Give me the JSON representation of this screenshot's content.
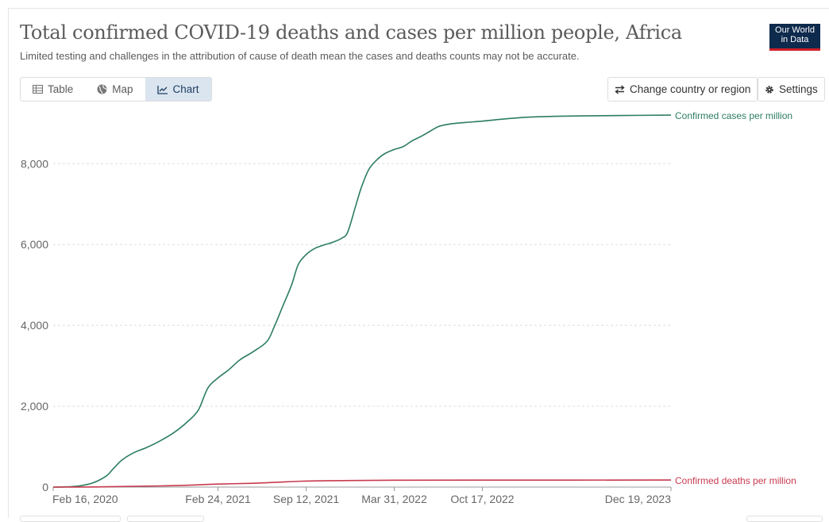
{
  "header": {
    "title": "Total confirmed COVID-19 deaths and cases per million people, Africa",
    "subtitle": "Limited testing and challenges in the attribution of cause of death mean the cases and deaths counts may not be accurate.",
    "logo_line1": "Our World",
    "logo_line2": "in Data"
  },
  "tabs": [
    {
      "label": "Table",
      "icon": "table-icon",
      "active": false
    },
    {
      "label": "Map",
      "icon": "globe-icon",
      "active": false
    },
    {
      "label": "Chart",
      "icon": "line-chart-icon",
      "active": true
    }
  ],
  "controls": {
    "change_country_label": "Change country or region",
    "settings_label": "Settings"
  },
  "colors": {
    "cases": "#2c7d5f",
    "deaths": "#c73a4f",
    "grid": "#dddddd",
    "axis": "#666666"
  },
  "chart_data": {
    "type": "line",
    "title": "Total confirmed COVID-19 deaths and cases per million people, Africa",
    "xlabel": "",
    "ylabel": "",
    "x_ticks": [
      "Feb 16, 2020",
      "Feb 24, 2021",
      "Sep 12, 2021",
      "Mar 31, 2022",
      "Oct 17, 2022",
      "Dec 19, 2023"
    ],
    "y_ticks": [
      0,
      2000,
      4000,
      6000,
      8000
    ],
    "y_tick_labels": [
      "0",
      "2,000",
      "4,000",
      "6,000",
      "8,000"
    ],
    "xlim": [
      "2020-02-16",
      "2023-12-19"
    ],
    "ylim": [
      0,
      9300
    ],
    "grid": "horizontal dashed",
    "legend": "inline labels at line ends (right)",
    "series": [
      {
        "name": "Confirmed cases per million",
        "x": [
          "2020-02-16",
          "2020-03-15",
          "2020-04-15",
          "2020-05-15",
          "2020-06-15",
          "2020-07-01",
          "2020-07-20",
          "2020-08-15",
          "2020-09-15",
          "2020-10-15",
          "2020-11-15",
          "2020-12-15",
          "2021-01-10",
          "2021-02-01",
          "2021-02-24",
          "2021-03-20",
          "2021-04-15",
          "2021-05-15",
          "2021-06-15",
          "2021-07-01",
          "2021-07-20",
          "2021-08-10",
          "2021-08-25",
          "2021-09-12",
          "2021-10-01",
          "2021-10-20",
          "2021-11-10",
          "2021-12-01",
          "2021-12-15",
          "2022-01-01",
          "2022-01-15",
          "2022-02-01",
          "2022-02-20",
          "2022-03-10",
          "2022-03-31",
          "2022-04-20",
          "2022-05-10",
          "2022-06-01",
          "2022-06-20",
          "2022-07-10",
          "2022-07-30",
          "2022-08-20",
          "2022-09-10",
          "2022-10-17",
          "2022-12-01",
          "2023-02-01",
          "2023-04-01",
          "2023-06-01",
          "2023-09-01",
          "2023-12-19"
        ],
        "values": [
          0,
          5,
          30,
          100,
          270,
          450,
          660,
          840,
          980,
          1140,
          1340,
          1600,
          1900,
          2450,
          2700,
          2900,
          3150,
          3350,
          3600,
          3950,
          4450,
          5000,
          5500,
          5750,
          5900,
          5980,
          6050,
          6150,
          6300,
          6900,
          7400,
          7850,
          8100,
          8250,
          8350,
          8420,
          8560,
          8680,
          8800,
          8920,
          8970,
          9000,
          9020,
          9050,
          9100,
          9150,
          9170,
          9180,
          9190,
          9200
        ]
      },
      {
        "name": "Confirmed deaths per million",
        "x": [
          "2020-02-16",
          "2020-04-15",
          "2020-06-15",
          "2020-08-15",
          "2020-10-15",
          "2020-12-15",
          "2021-02-24",
          "2021-05-15",
          "2021-07-01",
          "2021-09-12",
          "2021-12-01",
          "2022-03-31",
          "2022-10-17",
          "2023-12-19"
        ],
        "values": [
          0,
          1,
          7,
          20,
          30,
          45,
          75,
          95,
          115,
          150,
          160,
          170,
          172,
          175
        ]
      }
    ]
  }
}
